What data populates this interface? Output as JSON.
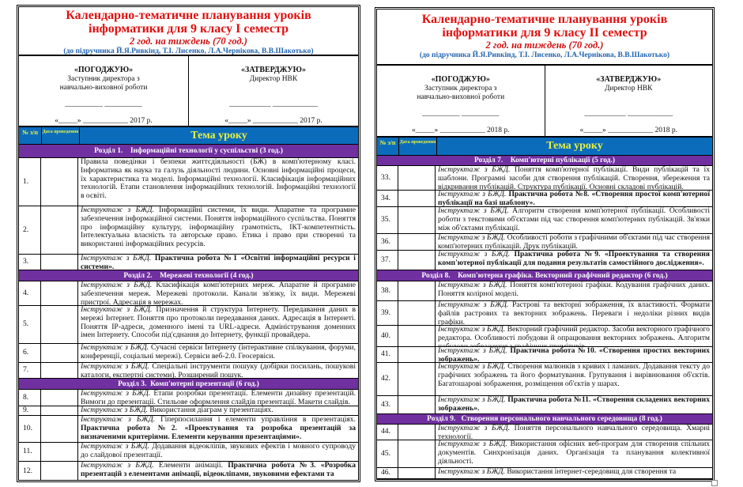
{
  "pages": [
    {
      "title_line1": "Календарно-тематичне планування уроків",
      "title_line2": "інформатики для 9 класу І семестр",
      "hours": "2 год. на тиждень (70 год.)",
      "textbook": "(до підручника  Й.Я.Ривкінд, Т.І. Лисенко, Л.А.Чернікова, В.В.Шакотько)",
      "agree": {
        "label": "«ПОГОДЖУЮ»",
        "role1": "Заступник директора з",
        "role2": "навчально-виховної роботи",
        "sign": "__________  __________",
        "date": "«_____» ____________ 2017 р."
      },
      "approve": {
        "label": "«ЗАТВЕРДЖУЮ»",
        "role1": "Директор НВК",
        "sign": "___________  ____________",
        "date": "«_____» ____________ 2017 р."
      },
      "header": {
        "num": "№ з/п",
        "date": "Дата проведення",
        "topic": "Тема уроку"
      },
      "items": [
        {
          "section": "Розділ 1.    Інформаційні технології у суспільстві (3 год.)"
        },
        {
          "num": "1.",
          "instr": "",
          "text": "Правила поведінки і безпеки життєдіяльності (БЖ) в комп'ютерному класі. Інформатика як наука та галузь діяльності людини. Основні інформаційні процеси, їх характеристика та моделі. Інформаційні технології. Класифікація інформаційних технологій. Етапи становлення інформаційних технологій. Інформаційні технології в освіті.",
          "bold": ""
        },
        {
          "num": "2.",
          "instr": "Інструктаж з БЖД.",
          "text": " Інформаційні системи, їх види. Апаратне та програмне забезпечення інформаційної системи. Поняття інформаційного суспільства. Поняття про інформаційну культуру, інформаційну грамотність, ІКТ-компетентність. Інтелектуальна власність та авторське право. Етика і право при створенні та використанні інформаційних ресурсів.",
          "bold": ""
        },
        {
          "num": "3.",
          "instr": "Інструктаж з БЖД.",
          "text": " ",
          "bold": "Практична робота №1 «Освітні інформаційні ресурси і системи»."
        },
        {
          "section": "Розділ 2.    Мережеві технології (4 год.)"
        },
        {
          "num": "4.",
          "instr": "Інструктаж з БЖД.",
          "text": " Класифікація комп'ютерних мереж. Апаратне й програмне забезпечення мереж. Мережеві протоколи. Канали зв'язку, їх види. Мережеві пристрої. Адресація в мережах.",
          "bold": ""
        },
        {
          "num": "5.",
          "instr": "Інструктаж з БЖД.",
          "text": " Призначення й структура Інтернету. Передавання даних в мережі Інтернет. Поняття про протоколи передавання даних. Адресація в Інтернеті. Поняття IP-адреси, доменного імені та URL-адреси. Адміністрування доменних імен Інтернету. Способи під'єднання до Інтернету, функції провайдера.",
          "bold": ""
        },
        {
          "num": "6.",
          "instr": "Інструктаж з БЖД.",
          "text": " Сучасні сервіси Інтернету (інтерактивне спілкування, форуми, конференції, соціальні мережі). Сервіси веб-2.0. Геосервіси.",
          "bold": ""
        },
        {
          "num": "7.",
          "instr": "Інструктаж з БЖД.",
          "text": " Спеціальні інструменти пошуку (добірки посилань, пошукові каталоги, експертні системи). Розширений пошук.",
          "bold": ""
        },
        {
          "section": "Розділ 3.  Комп'ютерні презентації (6 год.)"
        },
        {
          "num": "8.",
          "instr": "Інструктаж з БЖД.",
          "text": " Етапи розробки презентації. Елементи дизайну презентацій. Вимоги до презентації. Стильове оформлення слайдів презентації. Макети слайдів.",
          "bold": ""
        },
        {
          "num": "9.",
          "instr": "Інструктаж з БЖД.",
          "text": " Використання діаграм у презентаціях.",
          "bold": ""
        },
        {
          "num": "10.",
          "instr": "Інструктаж з БЖД.",
          "text": " Гіперпосилання і елементи управління в презентаціях. ",
          "bold": "Практична робота №2. «Проектування та розробка презентацій за визначеними критеріями. Елементи керування презентаціями»."
        },
        {
          "num": "11.",
          "instr": "Інструктаж з БЖД.",
          "text": " Додавання відеокліпів, звукових ефектів і мовного супроводу до слайдової презентації.",
          "bold": ""
        },
        {
          "num": "12.",
          "instr": "Інструктаж з БЖД.",
          "text": " Елементи анімації. ",
          "bold": "Практична робота №3. «Розробка презентацій з елементами анімації, відеокліпами, звуковими ефектами та"
        }
      ]
    },
    {
      "title_line1": "Календарно-тематичне планування уроків",
      "title_line2": "інформатики для 9 класу ІІ семестр",
      "hours": "2 год. на тиждень (70 год.)",
      "textbook": "(до підручника  Й.Я.Ривкінд, Т.І. Лисенко, Л.А.Чернікова, В.В.Шакотько)",
      "agree": {
        "label": "«ПОГОДЖУЮ»",
        "role1": "Заступник директора з",
        "role2": "навчально-виховної роботи",
        "sign": "__________  __________",
        "date": "«_____» ____________ 2018 р."
      },
      "approve": {
        "label": "«ЗАТВЕРДЖУЮ»",
        "role1": "Директор НВК",
        "sign": "___________  ____________",
        "date": "«_____» ____________ 2018 р."
      },
      "header": {
        "num": "№ з/п",
        "date": "Дата проведення",
        "topic": "Тема уроку"
      },
      "items": [
        {
          "section": "Розділ 7.    Комп'ютерні публікації (5 год.)"
        },
        {
          "num": "33.",
          "instr": "Інструктаж з БЖД.",
          "text": " Поняття комп'ютерної публікації. Види публікацій та їх шаблони. Програмні засоби для створення публікацій. Створення, збереження та відкривання публікацій. Структура публікації. Основні складові публікацій.",
          "bold": ""
        },
        {
          "num": "34.",
          "instr": "Інструктаж з БЖД.",
          "text": " ",
          "bold": "Практична робота №8. «Створення простої комп'ютерної публікації на базі шаблону»."
        },
        {
          "num": "35.",
          "instr": "Інструктаж з БЖД.",
          "text": " Алгоритм створення комп'ютерної публікації. Особливості роботи з текстовими об'єктами під час створення комп'ютерних публікацій. Зв'язки між об'єктами публікації.",
          "bold": ""
        },
        {
          "num": "36.",
          "instr": "Інструктаж з БЖД.",
          "text": " Особливості роботи з графічними об'єктами під час створення комп'ютерних публікацій. Друк публікацій.",
          "bold": ""
        },
        {
          "num": "37.",
          "instr": "Інструктаж з БЖД.",
          "text": " ",
          "bold": "Практична робота №9. «Проектування та створення комп'ютерної публікації для подання результатів самостійного дослідження»."
        },
        {
          "section": "Розділ 8.    Комп'ютерна графіка. Векторний графічний редактор (6 год.)"
        },
        {
          "num": "38.",
          "instr": "Інструктаж з БЖД.",
          "text": " Поняття комп'ютерної графіки. Кодування графічних даних. Поняття колірної моделі.",
          "bold": ""
        },
        {
          "num": "39.",
          "instr": "Інструктаж з БЖД.",
          "text": " Растрові та векторні зображення, їх властивості. Формати файлів растрових та векторних зображень. Переваги і недоліки різних видів графіки.",
          "bold": ""
        },
        {
          "num": "40.",
          "instr": "Інструктаж з БЖД.",
          "text": " Векторний графічний редактор. Засоби векторного графічного редактора. Особливості побудови й опрацювання векторних зображень. Алгоритм побудови зображення з графічних примітивів.",
          "bold": ""
        },
        {
          "num": "41.",
          "instr": "Інструктаж з БЖД.",
          "text": " ",
          "bold": "Практична робота №10. «Створення простих векторних зображень»."
        },
        {
          "num": "42.",
          "instr": "Інструктаж з БЖД.",
          "text": " Створення малюнків з кривих і ламаних. Додавання тексту до графічних зображень та його форматування. Групування і вирівнювання об'єктів. Багатошарові зображення, розміщення об'єктів у шарах.",
          "bold": ""
        },
        {
          "num": "43.",
          "instr": "Інструктаж з БЖД.",
          "text": " ",
          "bold": "Практична робота №11. «Створення складених векторних зображень»."
        },
        {
          "section": "Розділ 9.   Створення персонального навчального середовища (8 год.)"
        },
        {
          "num": "44.",
          "instr": "Інструктаж з БЖД.",
          "text": " Поняття персонального навчального середовища. Хмарні технології.",
          "bold": ""
        },
        {
          "num": "45.",
          "instr": "Інструктаж з БЖД.",
          "text": " Використання офісних веб-програм для створення спільних документів. Синхронізація даних. Організація та планування колективної діяльності.",
          "bold": ""
        },
        {
          "num": "46.",
          "instr": "Інструктаж з БЖД.",
          "text": " Використання інтернет-середовищ для створення та",
          "bold": ""
        }
      ]
    }
  ],
  "colors": {
    "title": "#e01010",
    "textbook": "#1f63b0",
    "header_bg": "#0b6cbc",
    "header_text": "#e6f03c",
    "section_bg": "#7030a0"
  }
}
